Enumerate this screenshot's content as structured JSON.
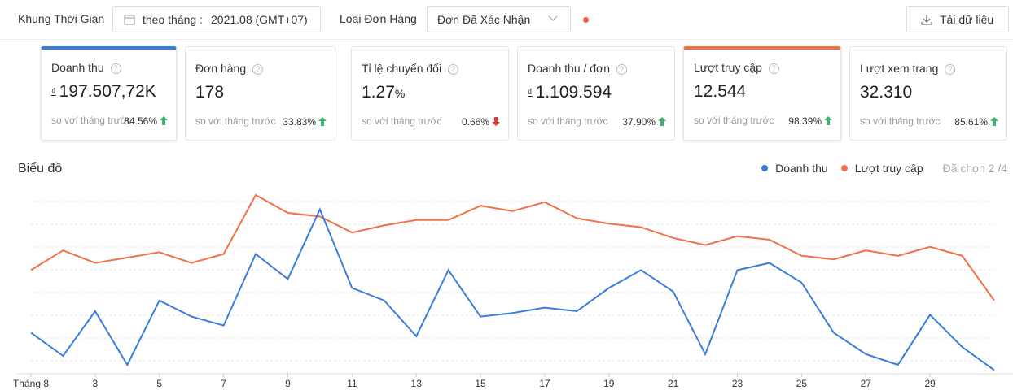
{
  "header": {
    "time_label": "Khung Thời Gian",
    "period_prefix": "theo tháng :",
    "period": "2021.08 (GMT+07)",
    "order_type_label": "Loại Đơn Hàng",
    "order_type": "Đơn Đã Xác Nhận",
    "download": "Tải dữ liệu"
  },
  "metrics": [
    {
      "label": "Doanh thu",
      "currency": "₫",
      "value": "197.507,72K",
      "compare": "so với tháng trước",
      "change": "84.56%",
      "direction": "up",
      "selected_color": "#3a7ddb"
    },
    {
      "label": "Đơn hàng",
      "value": "178",
      "compare": "so với tháng trước",
      "change": "33.83%",
      "direction": "up"
    },
    {
      "label": "Tỉ lệ chuyển đổi",
      "value": "1.27",
      "unit": "%",
      "compare": "so với tháng trước",
      "change": "0.66%",
      "direction": "down"
    },
    {
      "label": "Doanh thu / đơn",
      "currency": "₫",
      "value": "1.109.594",
      "compare": "so với tháng trước",
      "change": "37.90%",
      "direction": "up"
    },
    {
      "label": "Lượt truy cập",
      "value": "12.544",
      "compare": "so với tháng trước",
      "change": "98.39%",
      "direction": "up",
      "selected_color": "#f07048"
    },
    {
      "label": "Lượt xem trang",
      "value": "32.310",
      "compare": "so với tháng trước",
      "change": "85.61%",
      "direction": "up"
    }
  ],
  "chart_section": {
    "title": "Biểu đồ",
    "selected_note": "Đã chọn 2 /4"
  },
  "chart_data": {
    "type": "line",
    "grid": true,
    "ylim": [
      0,
      100
    ],
    "categories": [
      "Tháng 8",
      null,
      "3",
      null,
      "5",
      null,
      "7",
      null,
      "9",
      null,
      "11",
      null,
      "13",
      null,
      "15",
      null,
      "17",
      null,
      "19",
      null,
      "21",
      null,
      "23",
      null,
      "25",
      null,
      "27",
      null,
      "29",
      null,
      null
    ],
    "series": [
      {
        "name": "Doanh thu",
        "color": "#3a7ddb",
        "values": [
          23,
          10,
          35,
          5,
          41,
          32,
          27,
          67,
          53,
          92,
          48,
          41,
          21,
          58,
          32,
          34,
          37,
          35,
          48,
          58,
          46,
          11,
          58,
          62,
          51,
          23,
          11,
          5,
          33,
          15,
          2
        ]
      },
      {
        "name": "Lượt truy cập",
        "color": "#f07048",
        "values": [
          58,
          69,
          62,
          65,
          68,
          62,
          67,
          100,
          90,
          88,
          79,
          83,
          86,
          86,
          94,
          91,
          96,
          87,
          84,
          82,
          76,
          72,
          77,
          75,
          66,
          64,
          69,
          66,
          71,
          66,
          41
        ]
      }
    ]
  }
}
